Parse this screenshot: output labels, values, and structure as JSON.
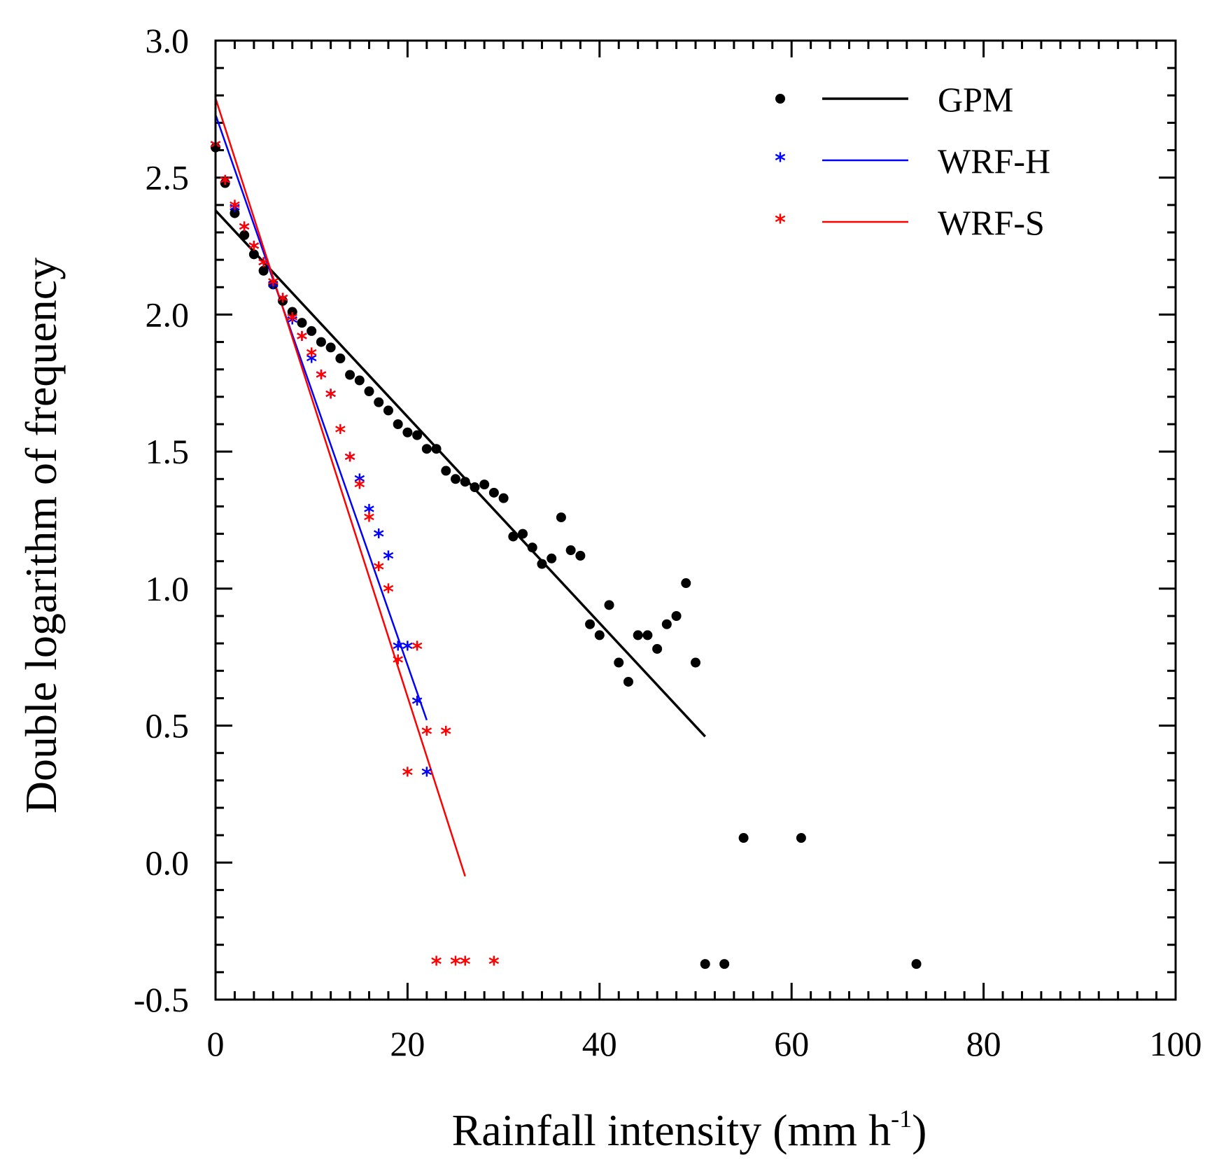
{
  "chart_data": {
    "type": "scatter",
    "title": "",
    "xlabel": "Rainfall intensity (mm h",
    "xlabel_sup": "-1",
    "xlabel_close": ")",
    "ylabel": "Double logarithm of frequency",
    "xlim": [
      0,
      100
    ],
    "ylim": [
      -0.5,
      3.0
    ],
    "x_ticks": [
      0,
      20,
      40,
      60,
      80,
      100
    ],
    "x_tick_labels": [
      "0",
      "20",
      "40",
      "60",
      "80",
      "100"
    ],
    "y_ticks": [
      -0.5,
      0.0,
      0.5,
      1.0,
      1.5,
      2.0,
      2.5,
      3.0
    ],
    "y_tick_labels": [
      "-0.5",
      "0.0",
      "0.5",
      "1.0",
      "1.5",
      "2.0",
      "2.5",
      "3.0"
    ],
    "legend_position": "top-right",
    "grid": false,
    "series": [
      {
        "name": "GPM",
        "marker": "dot",
        "color": "#000000",
        "x": [
          0,
          1,
          2,
          3,
          4,
          5,
          6,
          7,
          8,
          9,
          10,
          11,
          12,
          13,
          14,
          15,
          16,
          17,
          18,
          19,
          20,
          21,
          22,
          23,
          24,
          25,
          26,
          27,
          28,
          29,
          30,
          31,
          32,
          33,
          34,
          35,
          36,
          37,
          38,
          39,
          40,
          41,
          42,
          43,
          44,
          45,
          46,
          47,
          48,
          49,
          50,
          51,
          53,
          55,
          61,
          73
        ],
        "y": [
          2.61,
          2.48,
          2.37,
          2.29,
          2.22,
          2.16,
          2.11,
          2.05,
          2.01,
          1.97,
          1.94,
          1.9,
          1.88,
          1.84,
          1.78,
          1.76,
          1.72,
          1.68,
          1.65,
          1.6,
          1.57,
          1.56,
          1.51,
          1.51,
          1.43,
          1.4,
          1.39,
          1.37,
          1.38,
          1.35,
          1.33,
          1.19,
          1.2,
          1.15,
          1.09,
          1.11,
          1.26,
          1.14,
          1.12,
          0.87,
          0.83,
          0.94,
          0.73,
          0.66,
          0.83,
          0.83,
          0.78,
          0.87,
          0.9,
          1.02,
          0.73,
          -0.37,
          -0.37,
          0.09,
          0.09,
          -0.37
        ],
        "fit": {
          "x": [
            0,
            51
          ],
          "y": [
            2.38,
            0.46
          ]
        }
      },
      {
        "name": "WRF-H",
        "marker": "star",
        "color": "#0000ff",
        "x": [
          0,
          1,
          2,
          3,
          4,
          5,
          6,
          7,
          8,
          9,
          10,
          11,
          12,
          14,
          15,
          16,
          17,
          18,
          19,
          20,
          21,
          22
        ],
        "y": [
          2.61,
          2.48,
          2.38,
          2.31,
          2.24,
          2.18,
          2.1,
          2.05,
          1.97,
          1.91,
          1.83,
          1.77,
          1.7,
          1.47,
          1.39,
          1.28,
          1.19,
          1.11,
          0.78,
          0.78,
          0.58,
          0.32
        ],
        "fit": {
          "x": [
            0,
            22
          ],
          "y": [
            2.73,
            0.52
          ]
        }
      },
      {
        "name": "WRF-S",
        "marker": "star",
        "color": "#ff0000",
        "x": [
          0,
          1,
          2,
          3,
          4,
          5,
          6,
          7,
          8,
          9,
          10,
          11,
          12,
          13,
          14,
          15,
          16,
          17,
          18,
          19,
          20,
          21,
          22,
          23,
          24,
          25,
          26,
          29
        ],
        "y": [
          2.61,
          2.48,
          2.39,
          2.31,
          2.24,
          2.18,
          2.11,
          2.05,
          1.98,
          1.91,
          1.85,
          1.77,
          1.7,
          1.57,
          1.47,
          1.37,
          1.25,
          1.07,
          0.99,
          0.73,
          0.32,
          0.78,
          0.47,
          -0.37,
          0.47,
          -0.37,
          -0.37,
          -0.37
        ],
        "fit": {
          "x": [
            0,
            26
          ],
          "y": [
            2.79,
            -0.05
          ]
        }
      }
    ]
  }
}
